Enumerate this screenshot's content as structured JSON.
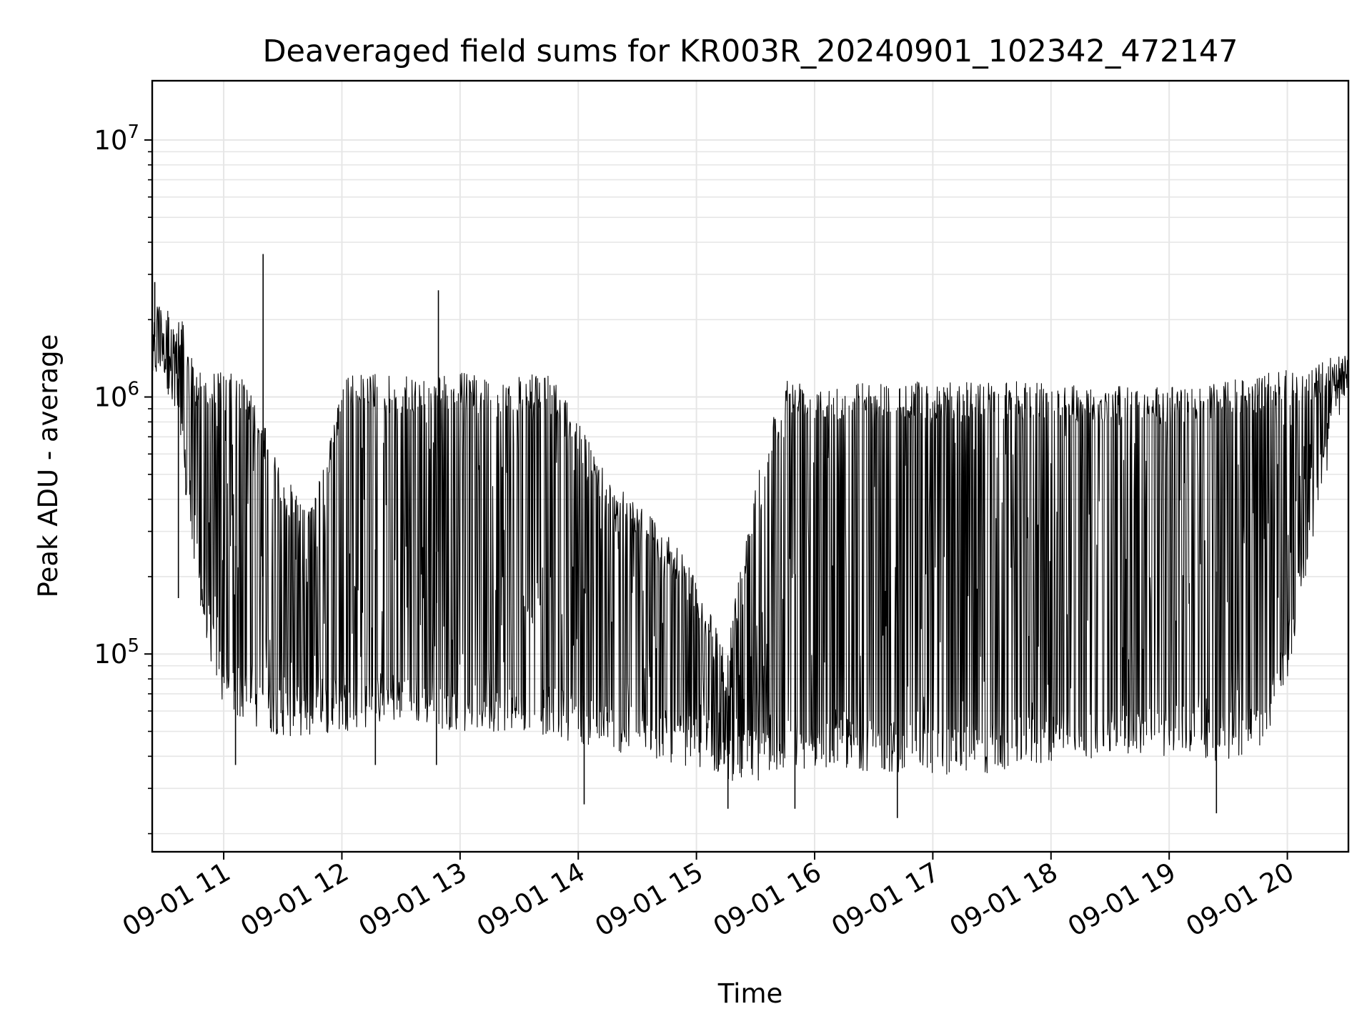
{
  "chart_data": {
    "type": "line",
    "title": "Deaveraged field sums for KR003R_20240901_102342_472147",
    "xlabel": "Time",
    "ylabel": "Peak ADU - average",
    "yscale": "log",
    "ylim": [
      17000,
      17000000
    ],
    "xlim": [
      "2024-09-01 10:23:42",
      "2024-09-01 20:31:00"
    ],
    "grid": true,
    "x_ticks": [
      {
        "value": "2024-09-01 11:00",
        "label": "09-01 11"
      },
      {
        "value": "2024-09-01 12:00",
        "label": "09-01 12"
      },
      {
        "value": "2024-09-01 13:00",
        "label": "09-01 13"
      },
      {
        "value": "2024-09-01 14:00",
        "label": "09-01 14"
      },
      {
        "value": "2024-09-01 15:00",
        "label": "09-01 15"
      },
      {
        "value": "2024-09-01 16:00",
        "label": "09-01 16"
      },
      {
        "value": "2024-09-01 17:00",
        "label": "09-01 17"
      },
      {
        "value": "2024-09-01 18:00",
        "label": "09-01 18"
      },
      {
        "value": "2024-09-01 19:00",
        "label": "09-01 19"
      },
      {
        "value": "2024-09-01 20:00",
        "label": "09-01 20"
      }
    ],
    "y_ticks": [
      {
        "value": 100000,
        "base": "10",
        "exp": "5"
      },
      {
        "value": 1000000,
        "base": "10",
        "exp": "6"
      },
      {
        "value": 10000000,
        "base": "10",
        "exp": "7"
      }
    ],
    "series": [
      {
        "color": "#000000",
        "envelope": [
          {
            "t": "2024-09-01 10:24",
            "high": 2700000,
            "low": 1100000
          },
          {
            "t": "2024-09-01 10:30",
            "high": 2300000,
            "low": 1200000
          },
          {
            "t": "2024-09-01 10:38",
            "high": 2100000,
            "low": 600000
          },
          {
            "t": "2024-09-01 10:45",
            "high": 1300000,
            "low": 200000
          },
          {
            "t": "2024-09-01 10:52",
            "high": 1300000,
            "low": 100000
          },
          {
            "t": "2024-09-01 11:00",
            "high": 1250000,
            "low": 60000
          },
          {
            "t": "2024-09-01 11:10",
            "high": 1200000,
            "low": 55000
          },
          {
            "t": "2024-09-01 11:20",
            "high": 800000,
            "low": 50000
          },
          {
            "t": "2024-09-01 11:30",
            "high": 500000,
            "low": 48000
          },
          {
            "t": "2024-09-01 11:40",
            "high": 400000,
            "low": 47000
          },
          {
            "t": "2024-09-01 11:50",
            "high": 500000,
            "low": 48000
          },
          {
            "t": "2024-09-01 12:00",
            "high": 1200000,
            "low": 50000
          },
          {
            "t": "2024-09-01 12:15",
            "high": 1250000,
            "low": 52000
          },
          {
            "t": "2024-09-01 12:30",
            "high": 1200000,
            "low": 55000
          },
          {
            "t": "2024-09-01 12:45",
            "high": 1200000,
            "low": 52000
          },
          {
            "t": "2024-09-01 13:00",
            "high": 1250000,
            "low": 50000
          },
          {
            "t": "2024-09-01 13:15",
            "high": 1200000,
            "low": 50000
          },
          {
            "t": "2024-09-01 13:30",
            "high": 1200000,
            "low": 50000
          },
          {
            "t": "2024-09-01 13:45",
            "high": 1250000,
            "low": 48000
          },
          {
            "t": "2024-09-01 14:00",
            "high": 800000,
            "low": 45000
          },
          {
            "t": "2024-09-01 14:15",
            "high": 500000,
            "low": 42000
          },
          {
            "t": "2024-09-01 14:30",
            "high": 400000,
            "low": 40000
          },
          {
            "t": "2024-09-01 14:45",
            "high": 300000,
            "low": 38000
          },
          {
            "t": "2024-09-01 15:00",
            "high": 200000,
            "low": 36000
          },
          {
            "t": "2024-09-01 15:15",
            "high": 100000,
            "low": 32000
          },
          {
            "t": "2024-09-01 15:30",
            "high": 500000,
            "low": 32000
          },
          {
            "t": "2024-09-01 15:45",
            "high": 1200000,
            "low": 35000
          },
          {
            "t": "2024-09-01 16:00",
            "high": 1150000,
            "low": 36000
          },
          {
            "t": "2024-09-01 16:30",
            "high": 1150000,
            "low": 35000
          },
          {
            "t": "2024-09-01 17:00",
            "high": 1150000,
            "low": 34000
          },
          {
            "t": "2024-09-01 17:30",
            "high": 1150000,
            "low": 34000
          },
          {
            "t": "2024-09-01 18:00",
            "high": 1150000,
            "low": 38000
          },
          {
            "t": "2024-09-01 18:30",
            "high": 1100000,
            "low": 40000
          },
          {
            "t": "2024-09-01 19:00",
            "high": 1100000,
            "low": 40000
          },
          {
            "t": "2024-09-01 19:30",
            "high": 1150000,
            "low": 38000
          },
          {
            "t": "2024-09-01 19:50",
            "high": 1250000,
            "low": 45000
          },
          {
            "t": "2024-09-01 20:00",
            "high": 1300000,
            "low": 80000
          },
          {
            "t": "2024-09-01 20:10",
            "high": 1200000,
            "low": 200000
          },
          {
            "t": "2024-09-01 20:20",
            "high": 1500000,
            "low": 500000
          },
          {
            "t": "2024-09-01 20:31",
            "high": 1400000,
            "low": 1150000
          }
        ],
        "spikes": [
          {
            "t": "2024-09-01 10:25",
            "value": 2800000
          },
          {
            "t": "2024-09-01 10:37",
            "value": 165000
          },
          {
            "t": "2024-09-01 11:06",
            "value": 37000
          },
          {
            "t": "2024-09-01 11:20",
            "value": 3600000
          },
          {
            "t": "2024-09-01 12:17",
            "value": 37000
          },
          {
            "t": "2024-09-01 12:48",
            "value": 37000
          },
          {
            "t": "2024-09-01 12:49",
            "value": 2600000
          },
          {
            "t": "2024-09-01 14:03",
            "value": 26000
          },
          {
            "t": "2024-09-01 15:16",
            "value": 25000
          },
          {
            "t": "2024-09-01 15:50",
            "value": 25000
          },
          {
            "t": "2024-09-01 16:42",
            "value": 23000
          },
          {
            "t": "2024-09-01 19:24",
            "value": 24000
          }
        ]
      }
    ]
  }
}
